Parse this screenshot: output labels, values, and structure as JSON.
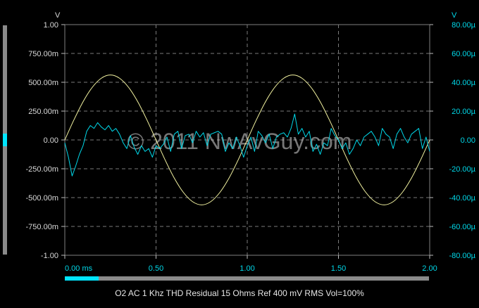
{
  "chart_data": {
    "type": "line",
    "title": "",
    "caption": "O2 AC 1 Khz THD Residual 15 Ohms Ref 400 mV RMS Vol=100%",
    "watermark": "© 2011 NwAvGuy.com",
    "x_axis": {
      "ticks": [
        "0.00 ms",
        "0.50",
        "1.00",
        "1.50",
        "2.00"
      ],
      "tick_values": [
        0,
        0.5,
        1.0,
        1.5,
        2.0
      ],
      "range": [
        0,
        2.0
      ],
      "unit": "ms"
    },
    "y_left": {
      "unit_label": "V",
      "range": [
        -1.0,
        1.0
      ],
      "ticks": [
        "1.00",
        "750.00m",
        "500.00m",
        "250.00m",
        "0.00",
        "-250.00m",
        "-500.00m",
        "-750.00m",
        "-1.00"
      ],
      "tick_values": [
        1.0,
        0.75,
        0.5,
        0.25,
        0,
        -0.25,
        -0.5,
        -0.75,
        -1.0
      ],
      "color": "#d9d9d9"
    },
    "y_right": {
      "unit_label": "V",
      "range": [
        -80,
        80
      ],
      "ticks": [
        "80.00µ",
        "60.00µ",
        "40.00µ",
        "20.00µ",
        "0.00",
        "-20.00µ",
        "-40.00µ",
        "-60.00µ",
        "-80.00µ"
      ],
      "tick_values": [
        80,
        60,
        40,
        20,
        0,
        -20,
        -40,
        -60,
        -80
      ],
      "color": "#00d7e8"
    },
    "grid": true,
    "series": [
      {
        "axis": "left",
        "color": "#f2f2a0",
        "x": [
          0,
          0.05,
          0.1,
          0.15,
          0.2,
          0.25,
          0.3,
          0.35,
          0.4,
          0.45,
          0.5,
          0.55,
          0.6,
          0.65,
          0.7,
          0.75,
          0.8,
          0.85,
          0.9,
          0.95,
          1.0,
          1.05,
          1.1,
          1.15,
          1.2,
          1.25,
          1.3,
          1.35,
          1.4,
          1.45,
          1.5,
          1.55,
          1.6,
          1.65,
          1.7,
          1.75,
          1.8,
          1.85,
          1.9,
          1.95,
          2.0
        ],
        "y": [
          0,
          0.174,
          0.331,
          0.455,
          0.535,
          0.563,
          0.535,
          0.455,
          0.331,
          0.174,
          0,
          -0.174,
          -0.331,
          -0.455,
          -0.535,
          -0.563,
          -0.535,
          -0.455,
          -0.331,
          -0.174,
          0,
          0.174,
          0.331,
          0.455,
          0.535,
          0.563,
          0.535,
          0.455,
          0.331,
          0.174,
          0,
          -0.174,
          -0.331,
          -0.455,
          -0.535,
          -0.563,
          -0.535,
          -0.455,
          -0.331,
          -0.174,
          0
        ]
      },
      {
        "axis": "right",
        "color": "#00d7e8",
        "x": [
          0,
          0.02,
          0.04,
          0.06,
          0.08,
          0.1,
          0.12,
          0.14,
          0.16,
          0.18,
          0.2,
          0.22,
          0.24,
          0.26,
          0.28,
          0.3,
          0.32,
          0.34,
          0.36,
          0.38,
          0.4,
          0.42,
          0.44,
          0.46,
          0.48,
          0.5,
          0.52,
          0.54,
          0.56,
          0.58,
          0.6,
          0.62,
          0.64,
          0.66,
          0.68,
          0.7,
          0.72,
          0.74,
          0.76,
          0.78,
          0.8,
          0.82,
          0.84,
          0.86,
          0.88,
          0.9,
          0.92,
          0.94,
          0.96,
          0.98,
          1.0,
          1.02,
          1.04,
          1.06,
          1.08,
          1.1,
          1.12,
          1.14,
          1.16,
          1.18,
          1.2,
          1.22,
          1.24,
          1.26,
          1.28,
          1.3,
          1.32,
          1.34,
          1.36,
          1.38,
          1.4,
          1.42,
          1.44,
          1.46,
          1.48,
          1.5,
          1.52,
          1.54,
          1.56,
          1.58,
          1.6,
          1.62,
          1.64,
          1.66,
          1.68,
          1.7,
          1.72,
          1.74,
          1.76,
          1.78,
          1.8,
          1.82,
          1.84,
          1.86,
          1.88,
          1.9,
          1.92,
          1.94,
          1.96,
          1.98,
          2.0
        ],
        "y": [
          -2,
          -12,
          -25,
          -18,
          -10,
          -4,
          6,
          10,
          8,
          12,
          9,
          7,
          10,
          6,
          8,
          4,
          -2,
          -6,
          3,
          -5,
          -10,
          -4,
          -8,
          -6,
          -12,
          -4,
          -6,
          -3,
          2,
          -8,
          4,
          6,
          -6,
          3,
          4,
          -2,
          6,
          2,
          5,
          -4,
          4,
          5,
          6,
          4,
          -8,
          -2,
          -6,
          2,
          -4,
          -12,
          -4,
          2,
          -8,
          6,
          3,
          -2,
          4,
          -6,
          2,
          4,
          5,
          2,
          8,
          18,
          4,
          8,
          2,
          6,
          -8,
          -3,
          -10,
          -2,
          -4,
          8,
          3,
          0,
          -6,
          -2,
          -10,
          -6,
          0,
          -4,
          2,
          4,
          6,
          2,
          -4,
          8,
          4,
          2,
          -6,
          4,
          8,
          2,
          -2,
          4,
          6,
          8,
          -6,
          2,
          -8
        ]
      }
    ]
  }
}
